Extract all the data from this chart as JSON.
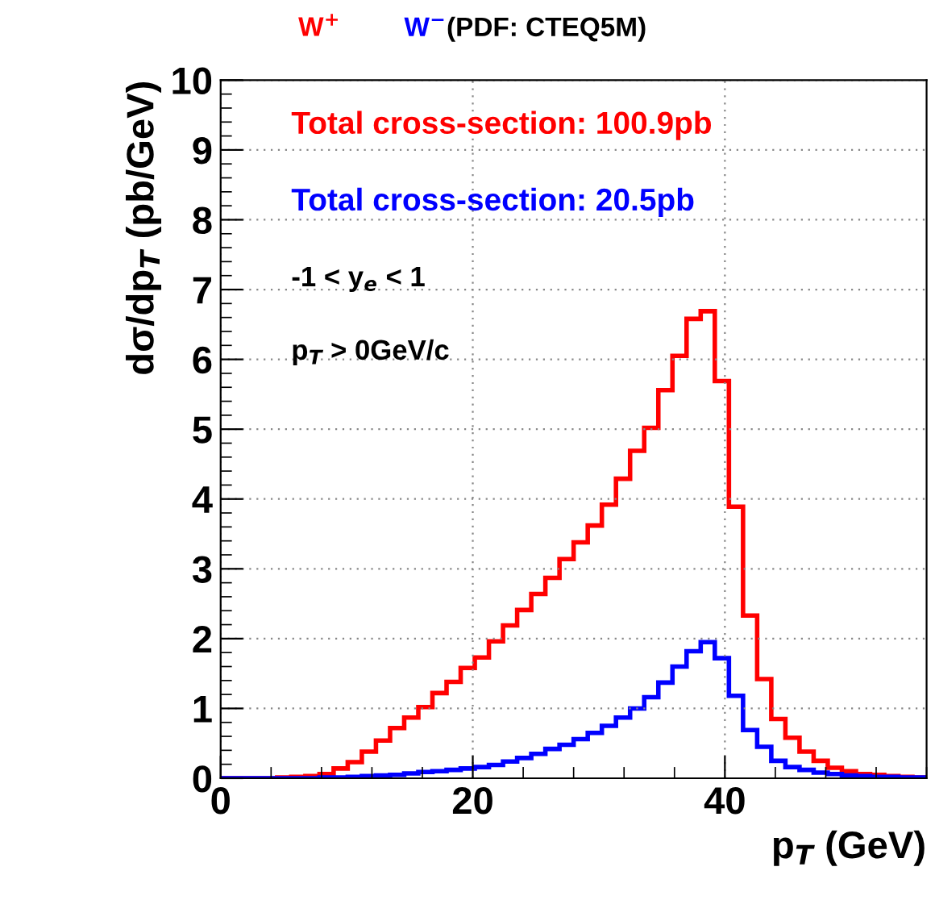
{
  "chart_data": {
    "type": "histogram",
    "title": "(PDF: CTEQ5M)",
    "xlabel": "p$_{T}$ (GeV)",
    "ylabel": "dσ/dp$_{T}$ (pb/GeV)",
    "bins": [
      0,
      1.12,
      2.24,
      3.36,
      4.48,
      5.6,
      6.72,
      7.84,
      8.96,
      10.08,
      11.2,
      12.32,
      13.44,
      14.56,
      15.68,
      16.8,
      17.92,
      19.04,
      20.16,
      21.28,
      22.4,
      23.52,
      24.64,
      25.76,
      26.88,
      28,
      29.12,
      30.24,
      31.36,
      32.48,
      33.6,
      34.72,
      35.84,
      36.96,
      38.08,
      39.2,
      40.32,
      41.44,
      42.56,
      43.68,
      44.8,
      45.92,
      47.04,
      48.16,
      49.28,
      50.4,
      51.52,
      52.64,
      53.76,
      54.88,
      56
    ],
    "series": [
      {
        "name": "W$^{+}$",
        "color": "#ff0000",
        "values": [
          0,
          0,
          0,
          0,
          0.01,
          0.02,
          0.03,
          0.06,
          0.14,
          0.23,
          0.38,
          0.54,
          0.72,
          0.87,
          1.02,
          1.22,
          1.38,
          1.58,
          1.73,
          1.96,
          2.19,
          2.41,
          2.64,
          2.87,
          3.14,
          3.38,
          3.62,
          3.92,
          4.29,
          4.69,
          5.02,
          5.56,
          6.05,
          6.58,
          6.69,
          5.69,
          3.89,
          2.33,
          1.42,
          0.85,
          0.58,
          0.38,
          0.25,
          0.15,
          0.1,
          0.06,
          0.05,
          0.03,
          0.02,
          0.01
        ]
      },
      {
        "name": "W$^{−}$",
        "color": "#0000ff",
        "values": [
          0,
          0,
          0,
          0,
          0,
          0,
          0,
          0.01,
          0.01,
          0.02,
          0.03,
          0.04,
          0.05,
          0.07,
          0.09,
          0.1,
          0.12,
          0.14,
          0.16,
          0.19,
          0.24,
          0.29,
          0.35,
          0.42,
          0.48,
          0.56,
          0.65,
          0.75,
          0.87,
          1.0,
          1.16,
          1.37,
          1.6,
          1.82,
          1.95,
          1.72,
          1.18,
          0.69,
          0.45,
          0.25,
          0.16,
          0.12,
          0.08,
          0.06,
          0.04,
          0.03,
          0.02,
          0.02,
          0.01,
          0.01
        ]
      }
    ],
    "annotations": [
      "Total cross-section: 100.9pb",
      "Total cross-section: 20.5pb",
      "-1 < y$_{e}$ < 1",
      "p$_{T}$ > 0GeV/c"
    ],
    "xlim": [
      0,
      56
    ],
    "xticks": [
      0,
      20,
      40
    ],
    "ylim": [
      0,
      10
    ],
    "yticks": [
      0,
      1,
      2,
      3,
      4,
      5,
      6,
      7,
      8,
      9,
      10
    ],
    "grid": true,
    "legend": "top left"
  }
}
